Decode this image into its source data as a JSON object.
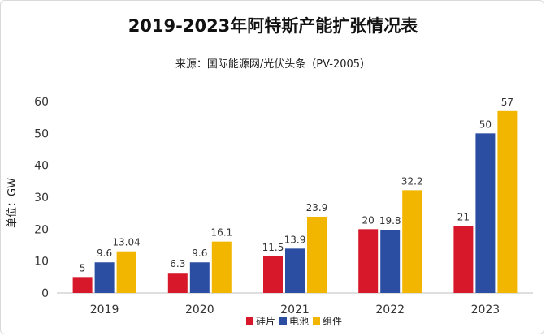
{
  "chart_data": {
    "type": "bar",
    "title": "2019-2023年阿特斯产能扩张情况表",
    "subtitle": "来源：国际能源网/光伏头条（PV-2005）",
    "ylabel": "单位：GW",
    "xlabel": "",
    "ylim": [
      0,
      60
    ],
    "yticks": [
      0,
      10,
      20,
      30,
      40,
      50,
      60
    ],
    "categories": [
      "2019",
      "2020",
      "2021",
      "2022",
      "2023"
    ],
    "series": [
      {
        "name": "硅片",
        "color": "#d7182a",
        "values": [
          5,
          6.3,
          11.5,
          20,
          21
        ],
        "labels": [
          "5",
          "6.3",
          "11.5",
          "20",
          "21"
        ]
      },
      {
        "name": "电池",
        "color": "#2b4ea2",
        "values": [
          9.6,
          9.6,
          13.9,
          19.8,
          50
        ],
        "labels": [
          "9.6",
          "9.6",
          "13.9",
          "19.8",
          "50"
        ]
      },
      {
        "name": "组件",
        "color": "#f2b600",
        "values": [
          13.04,
          16.1,
          23.9,
          32.2,
          57
        ],
        "labels": [
          "13.04",
          "16.1",
          "23.9",
          "32.2",
          "57"
        ]
      }
    ],
    "grid": true,
    "legend_position": "bottom-center"
  }
}
